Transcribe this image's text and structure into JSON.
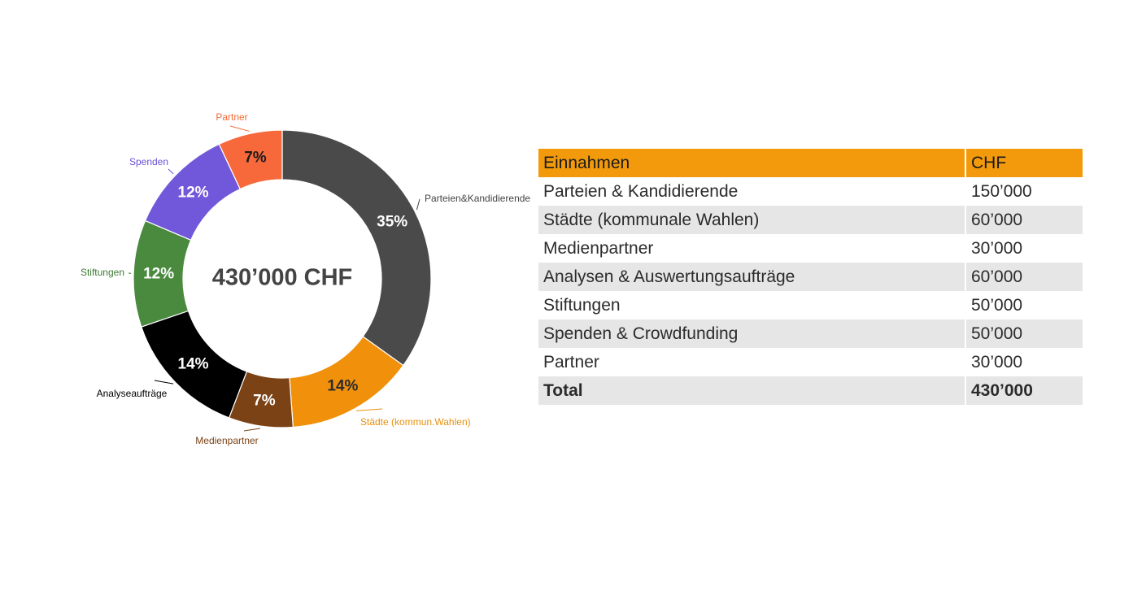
{
  "chart_data": {
    "type": "pie",
    "variant": "donut",
    "center_text": "430’000 CHF",
    "slices": [
      {
        "label": "Parteien&Kandidierende",
        "percent_label": "35%",
        "value": 150000,
        "color": "#4a4a4a",
        "label_color": "#444444",
        "pct_color": "#ffffff"
      },
      {
        "label": "Städte (kommun.Wahlen)",
        "percent_label": "14%",
        "value": 60000,
        "color": "#f0900b",
        "label_color": "#e8900f",
        "pct_color": "#2b2b2b"
      },
      {
        "label": "Medienpartner",
        "percent_label": "7%",
        "value": 30000,
        "color": "#7b4216",
        "label_color": "#7b4216",
        "pct_color": "#ffffff"
      },
      {
        "label": "Analyseaufträge",
        "percent_label": "14%",
        "value": 60000,
        "color": "#000000",
        "label_color": "#000000",
        "pct_color": "#ffffff"
      },
      {
        "label": "Stiftungen",
        "percent_label": "12%",
        "value": 50000,
        "color": "#4a8a3f",
        "label_color": "#3d7a33",
        "pct_color": "#ffffff"
      },
      {
        "label": "Spenden",
        "percent_label": "12%",
        "value": 50000,
        "color": "#7157d9",
        "label_color": "#6a50d8",
        "pct_color": "#ffffff"
      },
      {
        "label": "Partner",
        "percent_label": "7%",
        "value": 30000,
        "color": "#f7693b",
        "label_color": "#f46a35",
        "pct_color": "#1a1a1a"
      }
    ]
  },
  "table": {
    "header": {
      "col1": "Einnahmen",
      "col2": "CHF"
    },
    "rows": [
      {
        "label": "Parteien & Kandidierende",
        "value": "150’000"
      },
      {
        "label": "Städte (kommunale Wahlen)",
        "value": "60’000"
      },
      {
        "label": "Medienpartner",
        "value": "30’000"
      },
      {
        "label": "Analysen & Auswertungsaufträge",
        "value": "60’000"
      },
      {
        "label": "Stiftungen",
        "value": "50’000"
      },
      {
        "label": "Spenden & Crowdfunding",
        "value": "50’000"
      },
      {
        "label": "Partner",
        "value": "30’000"
      }
    ],
    "total": {
      "label": "Total",
      "value": "430’000"
    }
  }
}
